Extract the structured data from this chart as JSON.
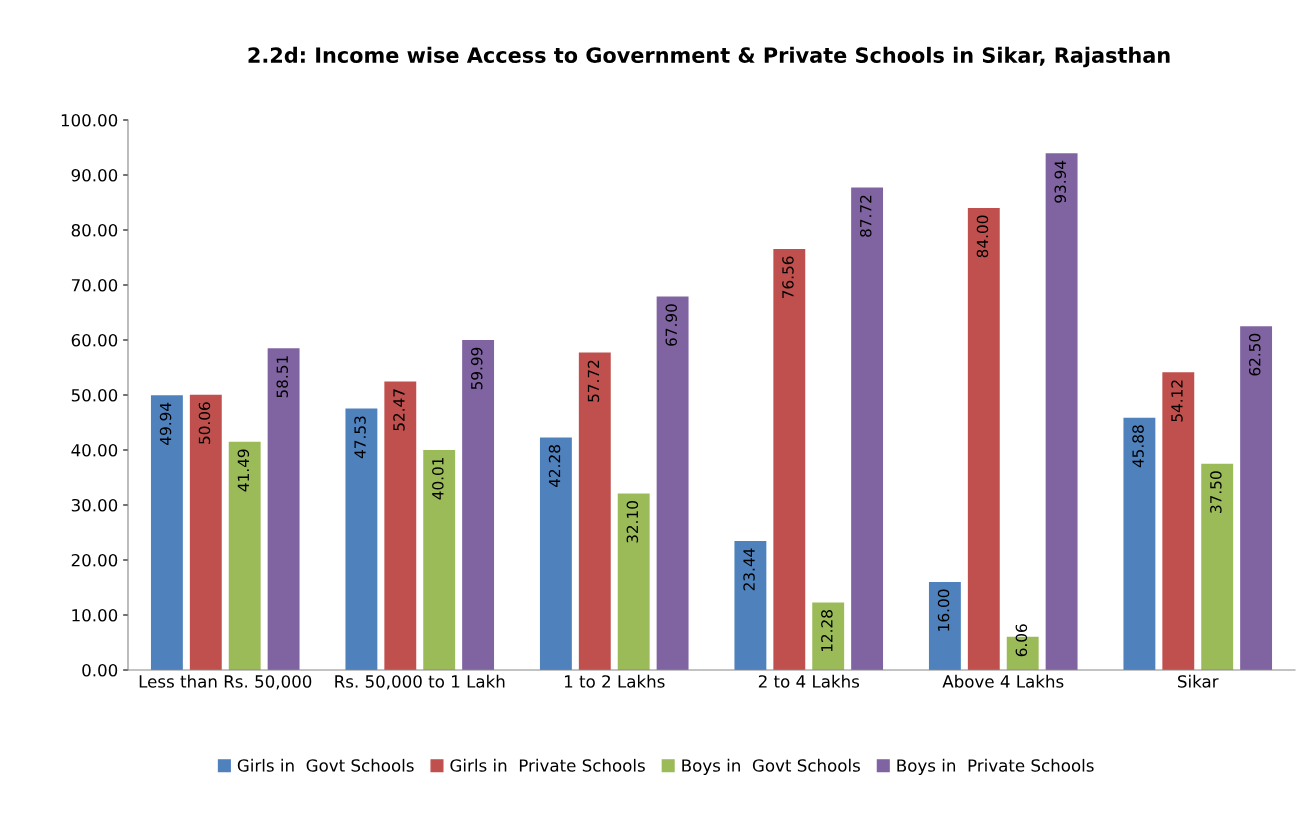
{
  "chart_data": {
    "type": "bar",
    "title": "2.2d: Income wise Access to Government & Private Schools in Sikar, Rajasthan",
    "categories": [
      "Less than Rs. 50,000",
      "Rs. 50,000 to 1 Lakh",
      "1 to 2 Lakhs",
      "2 to 4 Lakhs",
      "Above 4 Lakhs",
      "Sikar"
    ],
    "series": [
      {
        "name": "Girls in  Govt Schools",
        "color": "#4f81bd",
        "values": [
          49.94,
          47.53,
          42.28,
          23.44,
          16.0,
          45.88
        ],
        "value_labels": [
          "49.94",
          "47.53",
          "42.28",
          "23.44",
          "16.00",
          "45.88"
        ]
      },
      {
        "name": "Girls in  Private Schools",
        "color": "#c0504d",
        "values": [
          50.06,
          52.47,
          57.72,
          76.56,
          84.0,
          54.12
        ],
        "value_labels": [
          "50.06",
          "52.47",
          "57.72",
          "76.56",
          "84.00",
          "54.12"
        ]
      },
      {
        "name": "Boys in  Govt Schools",
        "color": "#9bbb59",
        "values": [
          41.49,
          40.01,
          32.1,
          12.28,
          6.06,
          37.5
        ],
        "value_labels": [
          "41.49",
          "40.01",
          "32.10",
          "12.28",
          "6.06",
          "37.50"
        ]
      },
      {
        "name": "Boys in  Private Schools",
        "color": "#8064a2",
        "values": [
          58.51,
          59.99,
          67.9,
          87.72,
          93.94,
          62.5
        ],
        "value_labels": [
          "58.51",
          "59.99",
          "67.90",
          "87.72",
          "93.94",
          "62.50"
        ]
      }
    ],
    "ylim": [
      0,
      100
    ],
    "yticks": [
      {
        "value": 0,
        "label": "0.00"
      },
      {
        "value": 10,
        "label": "10.00"
      },
      {
        "value": 20,
        "label": "20.00"
      },
      {
        "value": 30,
        "label": "30.00"
      },
      {
        "value": 40,
        "label": "40.00"
      },
      {
        "value": 50,
        "label": "50.00"
      },
      {
        "value": 60,
        "label": "60.00"
      },
      {
        "value": 70,
        "label": "70.00"
      },
      {
        "value": 80,
        "label": "80.00"
      },
      {
        "value": 90,
        "label": "90.00"
      },
      {
        "value": 100,
        "label": "100.00"
      }
    ],
    "grid": false,
    "legend": "bottom"
  }
}
